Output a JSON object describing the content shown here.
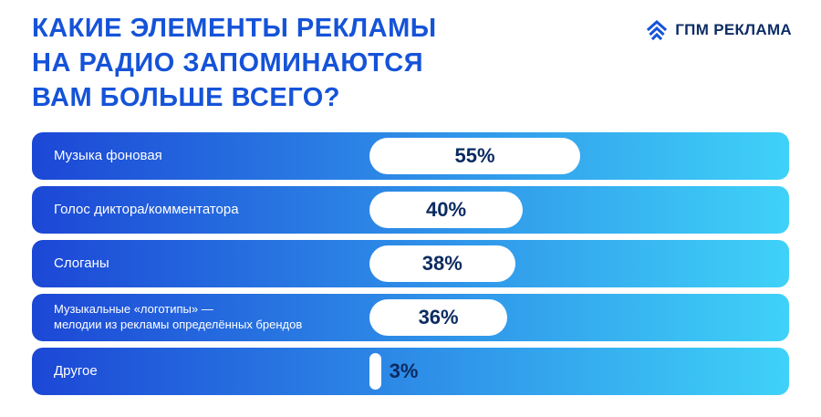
{
  "title": {
    "lines": [
      "КАКИЕ ЭЛЕМЕНТЫ РЕКЛАМЫ",
      "НА РАДИО ЗАПОМИНАЮТСЯ",
      "ВАМ БОЛЬШЕ ВСЕГО?"
    ]
  },
  "logo": {
    "text": "ГПМ РЕКЛАМА"
  },
  "colors": {
    "title_color": "#1553d8",
    "bar_gradient_start": "#1c47d6",
    "bar_gradient_end": "#3fd2f8",
    "pill_bg": "#ffffff",
    "value_text": "#0b2b60",
    "label_text": "#ffffff",
    "logo_color": "#0d2d66",
    "logo_icon_color": "#1553d8"
  },
  "chart_data": {
    "type": "bar",
    "orientation": "horizontal",
    "title": "Какие элементы рекламы на радио запоминаются вам больше всего?",
    "categories": [
      "Музыка фоновая",
      "Голос диктора/комментатора",
      "Слоганы",
      "Музыкальные «логотипы» —\nмелодии из рекламы определённых брендов",
      "Другое"
    ],
    "values": [
      55,
      40,
      38,
      36,
      3
    ],
    "unit": "%",
    "value_labels": [
      "55%",
      "40%",
      "38%",
      "36%",
      "3%"
    ],
    "xlim": [
      0,
      100
    ],
    "grid": false,
    "legend": "none"
  }
}
